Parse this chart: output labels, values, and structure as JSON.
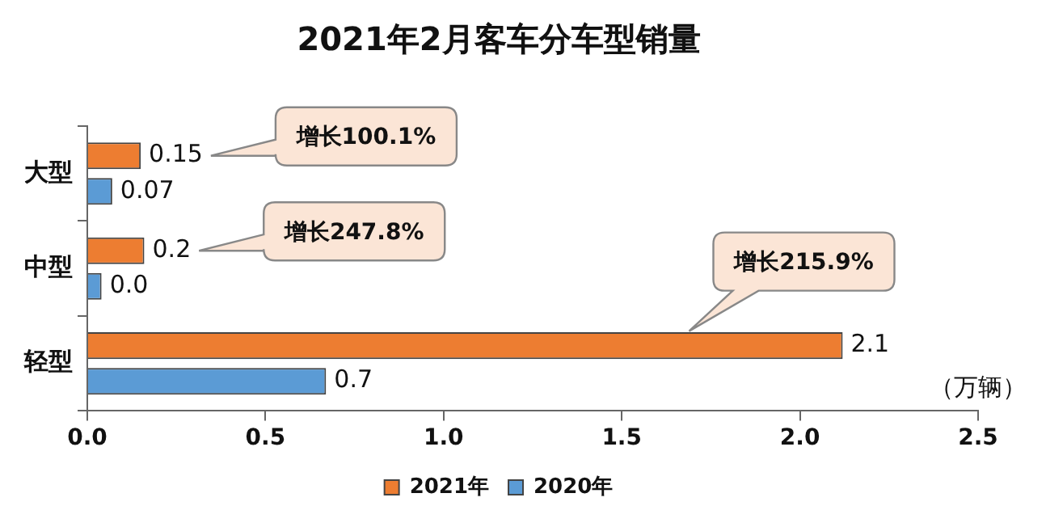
{
  "chart_data": {
    "type": "bar",
    "orientation": "horizontal",
    "title": "2021年2月客车分车型销量",
    "xlabel": "（万辆）",
    "categories": [
      "大型",
      "中型",
      "轻型"
    ],
    "series": [
      {
        "name": "2021年",
        "color": "#ed7d31",
        "values": [
          0.15,
          0.16,
          2.12
        ],
        "value_labels": [
          "0.15",
          "0.2",
          "2.1"
        ]
      },
      {
        "name": "2020年",
        "color": "#5b9bd5",
        "values": [
          0.07,
          0.04,
          0.67
        ],
        "value_labels": [
          "0.07",
          "0.0",
          "0.7"
        ]
      }
    ],
    "xlim": [
      0,
      2.5
    ],
    "xticks": [
      {
        "value": 0,
        "label": "0.0"
      },
      0.5,
      {
        "value": 1,
        "label": "1.0"
      },
      1.5,
      {
        "value": 2,
        "label": "2.0"
      },
      2.5
    ],
    "annotations": [
      "增长100.1%",
      "增长247.8%",
      "增长215.9%"
    ],
    "grid": false,
    "legend": "bottom"
  }
}
